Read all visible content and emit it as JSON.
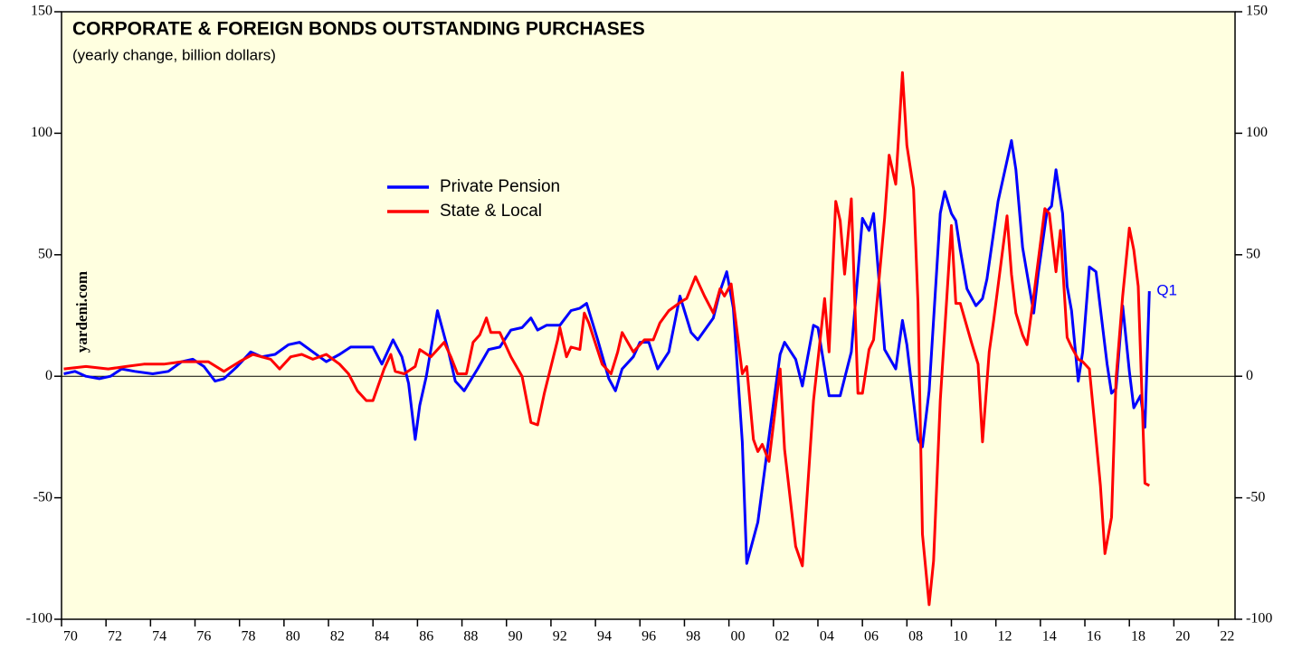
{
  "chart_data": {
    "type": "line",
    "title": "CORPORATE & FOREIGN BONDS OUTSTANDING PURCHASES",
    "subtitle": "(yearly change, billion dollars)",
    "source": "yardeni.com",
    "annotation": "Q1",
    "xlim": [
      1970,
      2022.75
    ],
    "xticks": [
      {
        "value": 1970,
        "label": "70"
      },
      {
        "value": 1972,
        "label": "72"
      },
      {
        "value": 1974,
        "label": "74"
      },
      {
        "value": 1976,
        "label": "76"
      },
      {
        "value": 1978,
        "label": "78"
      },
      {
        "value": 1980,
        "label": "80"
      },
      {
        "value": 1982,
        "label": "82"
      },
      {
        "value": 1984,
        "label": "84"
      },
      {
        "value": 1986,
        "label": "86"
      },
      {
        "value": 1988,
        "label": "88"
      },
      {
        "value": 1990,
        "label": "90"
      },
      {
        "value": 1992,
        "label": "92"
      },
      {
        "value": 1994,
        "label": "94"
      },
      {
        "value": 1996,
        "label": "96"
      },
      {
        "value": 1998,
        "label": "98"
      },
      {
        "value": 2000,
        "label": "00"
      },
      {
        "value": 2002,
        "label": "02"
      },
      {
        "value": 2004,
        "label": "04"
      },
      {
        "value": 2006,
        "label": "06"
      },
      {
        "value": 2008,
        "label": "08"
      },
      {
        "value": 2010,
        "label": "10"
      },
      {
        "value": 2012,
        "label": "12"
      },
      {
        "value": 2014,
        "label": "14"
      },
      {
        "value": 2016,
        "label": "16"
      },
      {
        "value": 2018,
        "label": "18"
      },
      {
        "value": 2020,
        "label": "20"
      },
      {
        "value": 2022,
        "label": "22"
      }
    ],
    "ylim": [
      -100,
      150
    ],
    "yticks": [
      -100,
      -50,
      0,
      50,
      100,
      150
    ],
    "zero_line": true,
    "background": "#ffffe0",
    "series": [
      {
        "name": "Private Pension",
        "color": "#0000ff",
        "x": [
          1970.1,
          1970.6,
          1971.1,
          1971.7,
          1972.2,
          1972.7,
          1973.3,
          1974.1,
          1974.8,
          1975.4,
          1975.9,
          1976.4,
          1976.9,
          1977.3,
          1977.9,
          1978.5,
          1979,
          1979.6,
          1980.2,
          1980.7,
          1981.3,
          1981.9,
          1982.5,
          1983,
          1983.5,
          1984,
          1984.4,
          1984.9,
          1985.3,
          1985.6,
          1985.9,
          1986.1,
          1986.4,
          1986.9,
          1987.4,
          1987.7,
          1988.1,
          1988.7,
          1989.2,
          1989.7,
          1990.2,
          1990.7,
          1991.1,
          1991.4,
          1991.8,
          1992.4,
          1992.9,
          1993.3,
          1993.6,
          1994.1,
          1994.6,
          1994.9,
          1995.2,
          1995.7,
          1996,
          1996.4,
          1996.8,
          1997.3,
          1997.8,
          1998.3,
          1998.6,
          1999.3,
          1999.6,
          1999.9,
          2000.2,
          2000.6,
          2000.8,
          2001.3,
          2001.8,
          2002.3,
          2002.5,
          2003,
          2003.3,
          2003.8,
          2004,
          2004.5,
          2005,
          2005.5,
          2006,
          2006.3,
          2006.5,
          2007,
          2007.5,
          2007.8,
          2008,
          2008.5,
          2008.7,
          2009,
          2009.5,
          2009.7,
          2010,
          2010.2,
          2010.4,
          2010.7,
          2011.1,
          2011.4,
          2011.6,
          2012.1,
          2012.7,
          2012.9,
          2013.2,
          2013.7,
          2013.9,
          2014.3,
          2014.5,
          2014.7,
          2015,
          2015.2,
          2015.4,
          2015.7,
          2015.9,
          2016.2,
          2016.5,
          2017,
          2017.2,
          2017.4,
          2017.7,
          2018,
          2018.2,
          2018.5,
          2018.7,
          2018.9
        ],
        "values": [
          1,
          2,
          0,
          -1,
          0,
          3,
          2,
          1,
          2,
          6,
          7,
          4,
          -2,
          -1,
          4,
          10,
          8,
          9,
          13,
          14,
          10,
          6,
          9,
          12,
          12,
          12,
          5,
          15,
          8,
          -3,
          -26,
          -12,
          0,
          27,
          10,
          -2,
          -6,
          3,
          11,
          12,
          19,
          20,
          24,
          19,
          21,
          21,
          27,
          28,
          30,
          15,
          -1,
          -6,
          3,
          8,
          14,
          14,
          3,
          10,
          33,
          18,
          15,
          24,
          35,
          43,
          28,
          -27,
          -77,
          -60,
          -25,
          9,
          14,
          7,
          -4,
          21,
          20,
          -8,
          -8,
          10,
          65,
          60,
          67,
          11,
          3,
          23,
          13,
          -26,
          -29,
          -6,
          67,
          76,
          67,
          64,
          52,
          36,
          29,
          32,
          40,
          72,
          97,
          85,
          53,
          26,
          42,
          68,
          70,
          85,
          67,
          37,
          27,
          -2,
          10,
          45,
          43,
          5,
          -7,
          -5,
          29,
          2,
          -13,
          -8,
          -21,
          35
        ]
      },
      {
        "name": "State & Local",
        "color": "#ff0000",
        "x": [
          1970.1,
          1971.1,
          1972.1,
          1972.9,
          1973.7,
          1974.6,
          1975.4,
          1976,
          1976.6,
          1977.3,
          1978,
          1978.6,
          1979.4,
          1979.8,
          1980.3,
          1980.8,
          1981.3,
          1981.9,
          1982.5,
          1982.9,
          1983.3,
          1983.7,
          1984,
          1984.5,
          1984.8,
          1985,
          1985.4,
          1985.9,
          1986.1,
          1986.6,
          1987.2,
          1987.5,
          1987.8,
          1988.2,
          1988.5,
          1988.8,
          1989.1,
          1989.3,
          1989.7,
          1990.2,
          1990.7,
          1991.1,
          1991.4,
          1991.7,
          1992.3,
          1992.4,
          1992.7,
          1992.9,
          1993.3,
          1993.5,
          1993.7,
          1994.3,
          1994.7,
          1995,
          1995.2,
          1995.7,
          1996.2,
          1996.6,
          1996.9,
          1997.3,
          1997.9,
          1998.1,
          1998.5,
          1998.9,
          1999.3,
          1999.6,
          1999.8,
          2000.1,
          2000.6,
          2000.8,
          2001.1,
          2001.3,
          2001.5,
          2001.8,
          2002.3,
          2002.5,
          2003,
          2003.3,
          2003.8,
          2004.3,
          2004.5,
          2004.8,
          2005,
          2005.2,
          2005.5,
          2005.8,
          2006,
          2006.3,
          2006.5,
          2007,
          2007.2,
          2007.5,
          2007.8,
          2008,
          2008.3,
          2008.5,
          2008.7,
          2009,
          2009.2,
          2009.5,
          2010,
          2010.2,
          2010.4,
          2010.9,
          2011.2,
          2011.4,
          2011.7,
          2011.9,
          2012.5,
          2012.7,
          2012.9,
          2013.2,
          2013.4,
          2013.7,
          2014.2,
          2014.4,
          2014.7,
          2014.9,
          2015.2,
          2015.4,
          2015.7,
          2015.9,
          2016.2,
          2016.4,
          2016.7,
          2016.9,
          2017.2,
          2017.4,
          2017.7,
          2018,
          2018.2,
          2018.4,
          2018.7,
          2018.9
        ],
        "values": [
          3,
          4,
          3,
          4,
          5,
          5,
          6,
          6,
          6,
          2,
          6,
          9,
          7,
          3,
          8,
          9,
          7,
          9,
          5,
          1,
          -6,
          -10,
          -10,
          3,
          9,
          2,
          1,
          4,
          11,
          8,
          14,
          8,
          1,
          1,
          14,
          17,
          24,
          18,
          18,
          8,
          0,
          -19,
          -20,
          -7,
          15,
          20,
          8,
          12,
          11,
          26,
          22,
          5,
          1,
          10,
          18,
          10,
          15,
          15,
          22,
          27,
          31,
          32,
          41,
          33,
          26,
          36,
          33,
          38,
          1,
          4,
          -26,
          -31,
          -28,
          -35,
          3,
          -30,
          -70,
          -78,
          -10,
          32,
          10,
          72,
          64,
          42,
          73,
          -7,
          -7,
          11,
          15,
          65,
          91,
          79,
          125,
          95,
          77,
          30,
          -65,
          -94,
          -76,
          -10,
          62,
          30,
          30,
          14,
          5,
          -27,
          10,
          23,
          66,
          42,
          26,
          17,
          13,
          33,
          69,
          67,
          43,
          60,
          16,
          12,
          7,
          6,
          3,
          -16,
          -45,
          -73,
          -58,
          -1,
          33,
          61,
          52,
          37,
          -44,
          -45
        ]
      }
    ]
  }
}
